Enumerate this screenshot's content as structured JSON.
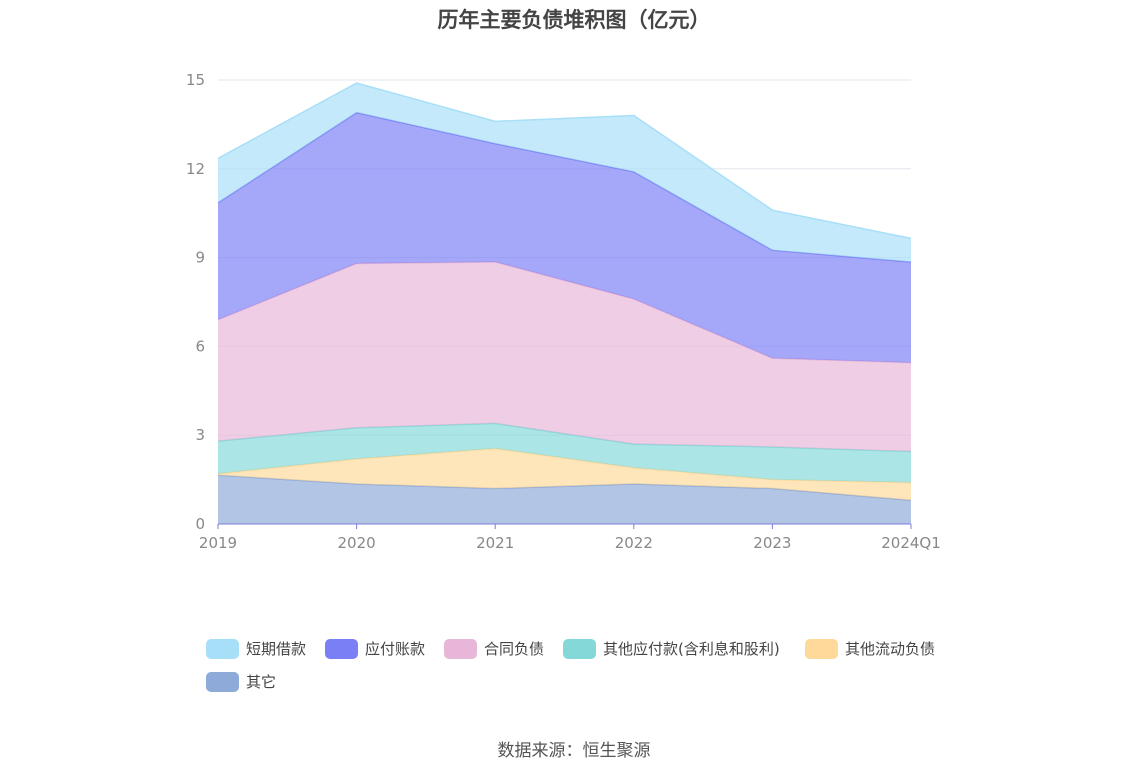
{
  "title": "历年主要负债堆积图（亿元）",
  "source": "数据来源：恒生聚源",
  "chart_data": {
    "type": "area",
    "stacked": true,
    "x": [
      "2019",
      "2020",
      "2021",
      "2022",
      "2023",
      "2024Q1"
    ],
    "ylim": [
      0,
      15
    ],
    "yticks": [
      "0",
      "3",
      "6",
      "9",
      "12",
      "15"
    ],
    "grid": true,
    "legend_position": "bottom",
    "series": [
      {
        "name": "其它",
        "color": "#8eaad8",
        "values": [
          1.65,
          1.35,
          1.2,
          1.35,
          1.2,
          0.8
        ]
      },
      {
        "name": "其他流动负债",
        "color": "#ffd99a",
        "values": [
          0.05,
          0.85,
          1.35,
          0.55,
          0.3,
          0.6
        ]
      },
      {
        "name": "其他应付款(含利息和股利)",
        "color": "#84d8d8",
        "values": [
          1.1,
          1.05,
          0.85,
          0.8,
          1.1,
          1.05
        ]
      },
      {
        "name": "合同负债",
        "color": "#e8b6d8",
        "values": [
          4.1,
          5.55,
          5.45,
          4.9,
          3.0,
          3.0
        ]
      },
      {
        "name": "应付账款",
        "color": "#7b7ff5",
        "values": [
          3.95,
          5.1,
          4.0,
          4.3,
          3.65,
          3.4
        ]
      },
      {
        "name": "短期借款",
        "color": "#a8dff8",
        "values": [
          1.5,
          1.0,
          0.75,
          1.9,
          1.35,
          0.8
        ]
      }
    ]
  },
  "legend": [
    {
      "label": "短期借款",
      "color": "#a8dff8"
    },
    {
      "label": "应付账款",
      "color": "#7b7ff5"
    },
    {
      "label": "合同负债",
      "color": "#e8b6d8"
    },
    {
      "label": "其他应付款(含利息和股利)",
      "color": "#84d8d8"
    },
    {
      "label": "其他流动负债",
      "color": "#ffd99a"
    },
    {
      "label": "其它",
      "color": "#8eaad8"
    }
  ]
}
